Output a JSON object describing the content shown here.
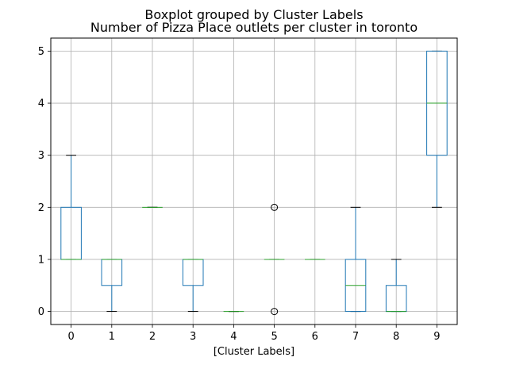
{
  "chart_data": {
    "type": "boxplot",
    "suptitle": "Boxplot grouped by Cluster Labels",
    "title": "Number of Pizza Place outlets per cluster in toronto",
    "xlabel": "[Cluster Labels]",
    "ylabel": "",
    "categories": [
      "0",
      "1",
      "2",
      "3",
      "4",
      "5",
      "6",
      "7",
      "8",
      "9"
    ],
    "ylim": [
      -0.25,
      5.25
    ],
    "yticks": [
      0,
      1,
      2,
      3,
      4,
      5
    ],
    "grid": true,
    "boxes": [
      {
        "category": "0",
        "whislo": 1,
        "q1": 1,
        "med": 1,
        "q3": 2,
        "whishi": 3,
        "fliers": []
      },
      {
        "category": "1",
        "whislo": 0,
        "q1": 0.5,
        "med": 1,
        "q3": 1,
        "whishi": 1,
        "fliers": []
      },
      {
        "category": "2",
        "whislo": 2,
        "q1": 2,
        "med": 2,
        "q3": 2,
        "whishi": 2,
        "fliers": []
      },
      {
        "category": "3",
        "whislo": 0,
        "q1": 0.5,
        "med": 1,
        "q3": 1,
        "whishi": 1,
        "fliers": []
      },
      {
        "category": "4",
        "whislo": 0,
        "q1": 0,
        "med": 0,
        "q3": 0,
        "whishi": 0,
        "fliers": []
      },
      {
        "category": "5",
        "whislo": 1,
        "q1": 1,
        "med": 1,
        "q3": 1,
        "whishi": 1,
        "fliers": [
          0,
          2
        ]
      },
      {
        "category": "6",
        "whislo": 1,
        "q1": 1,
        "med": 1,
        "q3": 1,
        "whishi": 1,
        "fliers": []
      },
      {
        "category": "7",
        "whislo": 0,
        "q1": 0,
        "med": 0.5,
        "q3": 1,
        "whishi": 2,
        "fliers": []
      },
      {
        "category": "8",
        "whislo": 0,
        "q1": 0,
        "med": 0,
        "q3": 0.5,
        "whishi": 1,
        "fliers": []
      },
      {
        "category": "9",
        "whislo": 2,
        "q1": 3,
        "med": 4,
        "q3": 5,
        "whishi": 5,
        "fliers": []
      }
    ],
    "colors": {
      "box": "#1f77b4",
      "median": "#2ca02c",
      "whisker": "#1f77b4",
      "cap": "#000000",
      "grid": "#b0b0b0",
      "flier": "#000000"
    }
  }
}
